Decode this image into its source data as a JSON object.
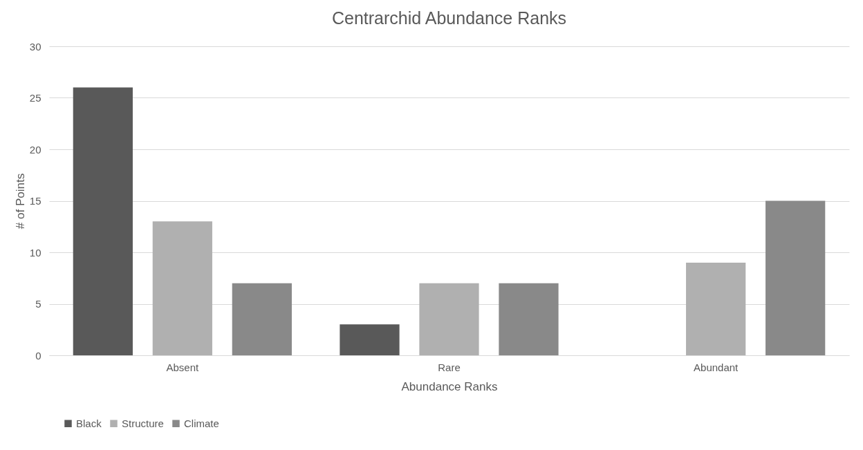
{
  "chart_data": {
    "type": "bar",
    "title": "Centrarchid Abundance Ranks",
    "xlabel": "Abundance Ranks",
    "ylabel": "# of Points",
    "categories": [
      "Absent",
      "Rare",
      "Abundant"
    ],
    "series": [
      {
        "name": "Black",
        "color": "#595959",
        "values": [
          26,
          3,
          0
        ]
      },
      {
        "name": "Structure",
        "color": "#b0b0b0",
        "values": [
          13,
          7,
          9
        ]
      },
      {
        "name": "Climate",
        "color": "#898989",
        "values": [
          7,
          7,
          15
        ]
      }
    ],
    "ylim": [
      0,
      30
    ],
    "yticks": [
      0,
      5,
      10,
      15,
      20,
      25,
      30
    ],
    "grid": "y",
    "legend": "bottom"
  }
}
